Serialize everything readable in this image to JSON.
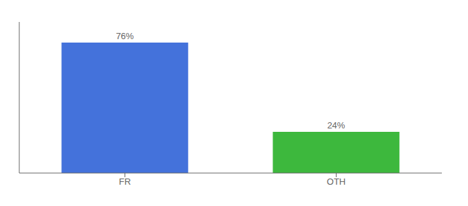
{
  "chart_data": {
    "type": "bar",
    "categories": [
      "FR",
      "OTH"
    ],
    "values": [
      76,
      24
    ],
    "colors": [
      "#4472db",
      "#3db83d"
    ],
    "ylim": [
      0,
      88
    ],
    "data_labels": true,
    "value_labels": [
      "76%",
      "24%"
    ],
    "tick_labels": "x"
  }
}
